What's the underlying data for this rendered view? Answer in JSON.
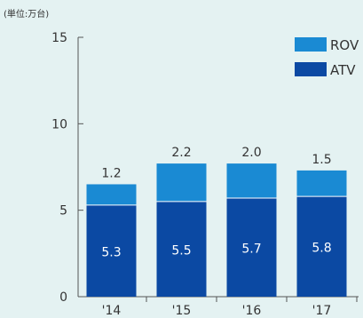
{
  "chart_data": {
    "type": "bar",
    "stacked": true,
    "unit_label": "(単位:万台)",
    "categories": [
      "'14",
      "'15",
      "'16",
      "'17"
    ],
    "series": [
      {
        "name": "ATV",
        "values": [
          5.3,
          5.5,
          5.7,
          5.8
        ],
        "color": "#0b49a3"
      },
      {
        "name": "ROV",
        "values": [
          1.2,
          2.2,
          2.0,
          1.5
        ],
        "color": "#1a8ad3"
      }
    ],
    "ylim": [
      0,
      15
    ],
    "yticks": [
      0,
      5,
      10,
      15
    ],
    "grid": false,
    "legend_position": "top-right"
  }
}
